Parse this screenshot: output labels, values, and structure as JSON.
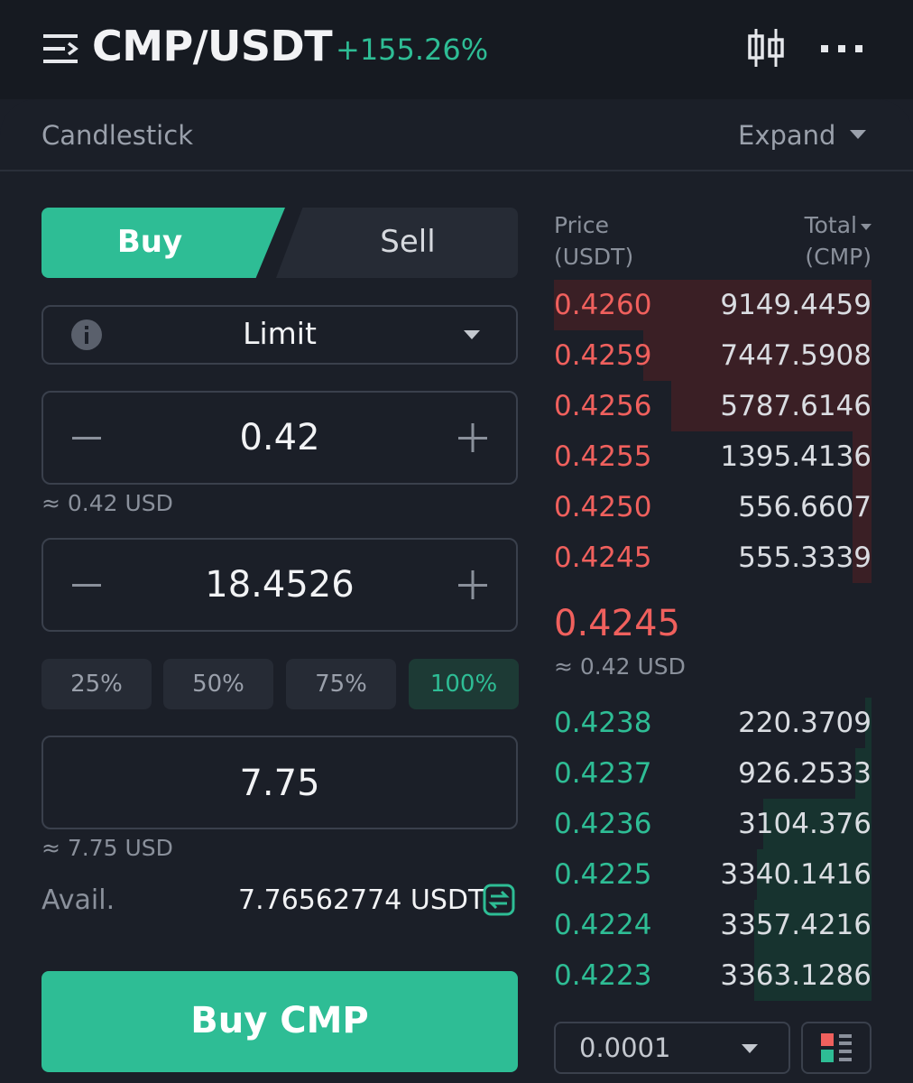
{
  "header": {
    "pair": "CMP/USDT",
    "change": "+155.26%",
    "icons": [
      "menu-icon",
      "candles-icon",
      "more-icon"
    ]
  },
  "chart_bar": {
    "label": "Candlestick",
    "expand": "Expand"
  },
  "tabs": {
    "buy": "Buy",
    "sell": "Sell"
  },
  "order_type": "Limit",
  "price": {
    "value": "0.42",
    "hint": "≈ 0.42 USD"
  },
  "amount": {
    "value": "18.4526"
  },
  "percent_chips": [
    "25%",
    "50%",
    "75%",
    "100%"
  ],
  "total": {
    "value": "7.75",
    "hint": "≈ 7.75 USD"
  },
  "avail": {
    "label": "Avail.",
    "value": "7.76562774 USDT"
  },
  "buy_button": "Buy CMP",
  "orderbook": {
    "price_header": [
      "Price",
      "(USDT)"
    ],
    "total_header": [
      "Total",
      "(CMP)"
    ],
    "asks": [
      {
        "price": "0.4260",
        "total": "9149.4459",
        "depth": 1.0
      },
      {
        "price": "0.4259",
        "total": "7447.5908",
        "depth": 0.72
      },
      {
        "price": "0.4256",
        "total": "5787.6146",
        "depth": 0.63
      },
      {
        "price": "0.4255",
        "total": "1395.4136",
        "depth": 0.06
      },
      {
        "price": "0.4250",
        "total": "556.6607",
        "depth": 0.06
      },
      {
        "price": "0.4245",
        "total": "555.3339",
        "depth": 0.06
      }
    ],
    "mid_price": "0.4245",
    "mid_usd": "≈ 0.42 USD",
    "bids": [
      {
        "price": "0.4238",
        "total": "220.3709",
        "depth": 0.02
      },
      {
        "price": "0.4237",
        "total": "926.2533",
        "depth": 0.05
      },
      {
        "price": "0.4236",
        "total": "3104.376",
        "depth": 0.34
      },
      {
        "price": "0.4225",
        "total": "3340.1416",
        "depth": 0.36
      },
      {
        "price": "0.4224",
        "total": "3357.4216",
        "depth": 0.37
      },
      {
        "price": "0.4223",
        "total": "3363.1286",
        "depth": 0.37
      }
    ],
    "precision": "0.0001"
  },
  "colors": {
    "background": "#1b1f28",
    "buy_green": "#2ebd95",
    "sell_red": "#f0605d"
  }
}
